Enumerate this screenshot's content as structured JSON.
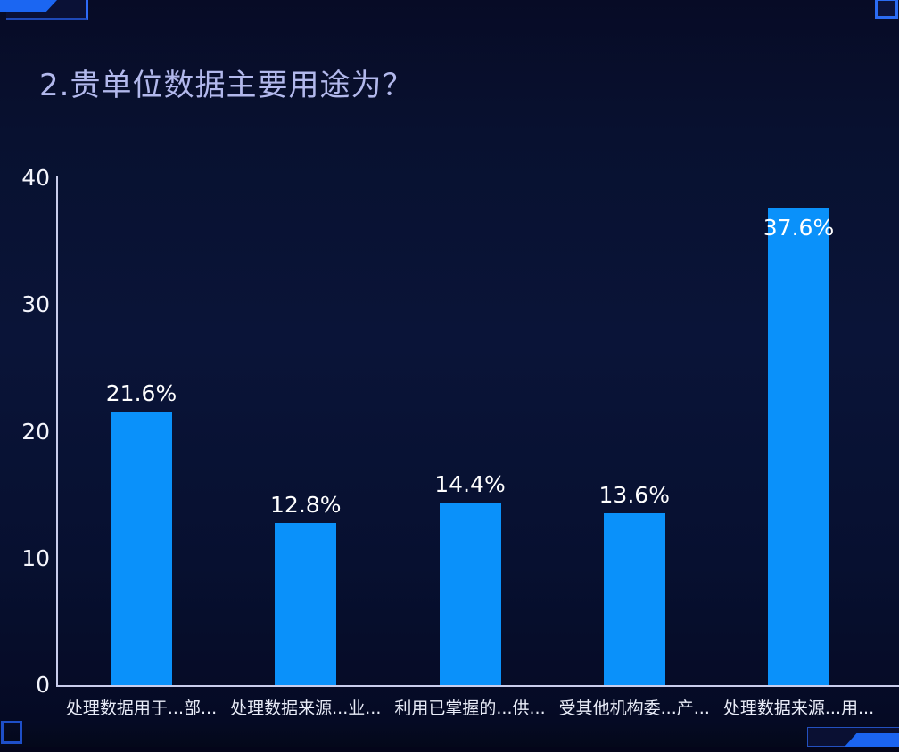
{
  "page": {
    "title": "2.贵单位数据主要用途为？"
  },
  "colors": {
    "background_top": "#070b26",
    "background_mid": "#0a1438",
    "background_bottom": "#050a24",
    "bar": "#0a91fa",
    "axis_line": "#c9cdec",
    "title_text": "#b2b8ec",
    "tick_text": "#f4f5fc",
    "category_text": "#e9ecf8",
    "value_label_text": "#ffffff",
    "decor_bright_blue": "#1b66f2",
    "decor_outline_blue": "#2350c0"
  },
  "chart_data": {
    "type": "bar",
    "title": "2.贵单位数据主要用途为？",
    "categories": [
      "处理数据用于...部...",
      "处理数据来源...业...",
      "利用已掌握的...供...",
      "受其他机构委...产...",
      "处理数据来源...用..."
    ],
    "values": [
      21.6,
      12.8,
      14.4,
      13.6,
      37.6
    ],
    "value_labels": [
      "21.6%",
      "12.8%",
      "14.4%",
      "13.6%",
      "37.6%"
    ],
    "value_label_position": [
      "above",
      "above",
      "above",
      "above",
      "inside"
    ],
    "ylabel": "",
    "xlabel": "",
    "yticks": [
      0,
      10,
      20,
      30,
      40
    ],
    "ylim": [
      0,
      40
    ],
    "grid": false,
    "legend": false
  }
}
